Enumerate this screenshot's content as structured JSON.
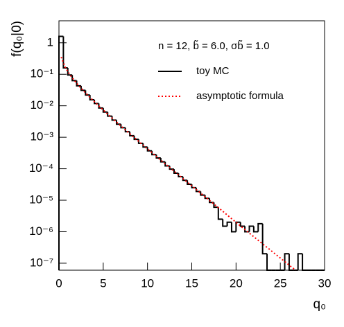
{
  "chart_data": {
    "type": "histogram",
    "annotation": "n = 12, b̃ = 6.0, σb̃ = 1.0",
    "xlabel": "q₀",
    "ylabel": "f(q₀|0)",
    "log_y": true,
    "xlim": [
      0,
      30
    ],
    "xticks": [
      0,
      5,
      10,
      15,
      20,
      25,
      30
    ],
    "ylim": [
      6e-08,
      5
    ],
    "yticks": [
      1,
      {
        "value": 0.1,
        "label": "10⁻¹"
      },
      {
        "value": 0.01,
        "label": "10⁻²"
      },
      {
        "value": 0.001,
        "label": "10⁻³"
      },
      {
        "value": 0.0001,
        "label": "10⁻⁴"
      },
      {
        "value": 1e-05,
        "label": "10⁻⁵"
      },
      {
        "value": 1e-06,
        "label": "10⁻⁶"
      },
      {
        "value": 1e-07,
        "label": "10⁻⁷"
      }
    ],
    "bins": [
      0,
      0.5,
      1,
      1.5,
      2,
      2.5,
      3,
      3.5,
      4,
      4.5,
      5,
      5.5,
      6,
      6.5,
      7,
      7.5,
      8,
      8.5,
      9,
      9.5,
      10,
      10.5,
      11,
      11.5,
      12,
      12.5,
      13,
      13.5,
      14,
      14.5,
      15,
      15.5,
      16,
      16.5,
      17,
      17.5,
      18,
      18.5,
      19,
      19.5,
      20,
      20.5,
      21,
      21.5,
      22,
      22.5,
      23,
      23.5,
      24,
      24.5,
      25,
      25.5,
      26,
      26.5,
      27,
      27.5,
      28,
      28.5,
      29,
      29.5,
      30
    ],
    "series": [
      {
        "name": "toy MC",
        "color": "#000000",
        "values": [
          1.6,
          0.16,
          0.095,
          0.063,
          0.043,
          0.031,
          0.022,
          0.0155,
          0.0118,
          0.0085,
          0.0063,
          0.0047,
          0.0035,
          0.0026,
          0.002,
          0.0015,
          0.00112,
          0.00086,
          0.00064,
          0.00049,
          0.00037,
          0.00028,
          0.00022,
          0.000165,
          0.000123,
          9.7e-05,
          7.2e-05,
          5.6e-05,
          4.3e-05,
          3.2e-05,
          2.5e-05,
          1.9e-05,
          1.45e-05,
          1.15e-05,
          8.5e-06,
          6e-06,
          2.5e-06,
          1.5e-06,
          2e-06,
          1e-06,
          2e-06,
          1.5e-06,
          1e-06,
          1.5e-06,
          1e-06,
          1.8e-06,
          2e-07,
          0,
          0,
          0,
          0,
          2e-07,
          0,
          0,
          2e-07,
          0,
          0,
          0,
          0,
          0
        ]
      }
    ],
    "curve": {
      "name": "asymptotic formula",
      "color": "#ff0000",
      "style": "dotted",
      "x": [
        0.25,
        0.75,
        1.25,
        1.75,
        2.25,
        2.75,
        3.25,
        3.75,
        4.25,
        4.75,
        5.25,
        5.75,
        6.25,
        6.75,
        7.25,
        7.75,
        8.25,
        8.75,
        9.25,
        9.75,
        10.25,
        10.75,
        11.25,
        11.75,
        12.25,
        12.75,
        13.25,
        13.75,
        14.25,
        14.75,
        15.25,
        15.75,
        16.25,
        16.75,
        17.25,
        17.75,
        18.25,
        18.75,
        19.25,
        19.75,
        20.25,
        20.75,
        21.25,
        21.75,
        22.25,
        22.75,
        23.25,
        23.75,
        24.25,
        24.75,
        25.25,
        25.75,
        26.25,
        26.75
      ],
      "values": [
        0.353,
        0.158,
        0.0955,
        0.0629,
        0.0432,
        0.0304,
        0.0218,
        0.0158,
        0.01157,
        0.00852,
        0.00631,
        0.0047,
        0.00351,
        0.00263,
        0.00198,
        0.00149,
        0.00113,
        0.00085,
        0.000646,
        0.00049,
        0.000372,
        0.000283,
        0.000215,
        0.000164,
        0.000125,
        9.56e-05,
        7.3e-05,
        5.59e-05,
        4.27e-05,
        3.27e-05,
        2.5e-05,
        1.92e-05,
        1.47e-05,
        1.13e-05,
        8.65e-06,
        6.65e-06,
        5.1e-06,
        3.9e-06,
        2.97e-06,
        2.27e-06,
        1.74e-06,
        1.34e-06,
        1.03e-06,
        7.9e-07,
        6.1e-07,
        4.7e-07,
        3.6e-07,
        2.8e-07,
        2.15e-07,
        1.66e-07,
        1.28e-07,
        9.9e-08,
        7.6e-08,
        5.9e-08
      ]
    }
  }
}
